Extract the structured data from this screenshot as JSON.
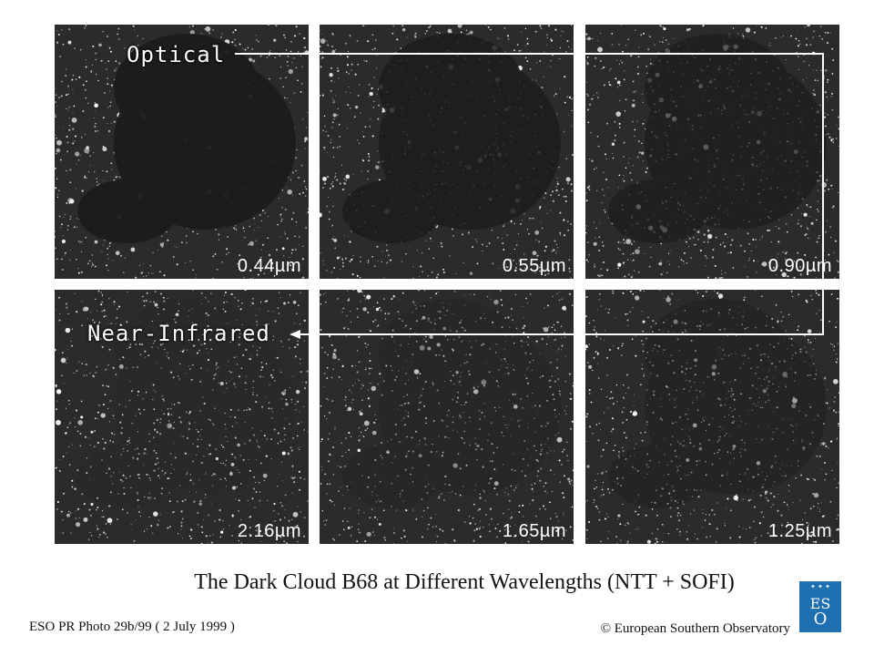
{
  "band_labels": {
    "optical": "Optical",
    "near_infrared": "Near-Infrared"
  },
  "panels": [
    {
      "wavelength": "0.44µm",
      "row": "optical",
      "cloud_opacity": 0.95
    },
    {
      "wavelength": "0.55µm",
      "row": "optical",
      "cloud_opacity": 0.85
    },
    {
      "wavelength": "0.90µm",
      "row": "optical",
      "cloud_opacity": 0.7
    },
    {
      "wavelength": "2.16µm",
      "row": "near-infrared",
      "cloud_opacity": 0.1
    },
    {
      "wavelength": "1.65µm",
      "row": "near-infrared",
      "cloud_opacity": 0.25
    },
    {
      "wavelength": "1.25µm",
      "row": "near-infrared",
      "cloud_opacity": 0.4
    }
  ],
  "caption": {
    "title": "The Dark Cloud B68 at Different Wavelengths   (NTT + SOFI)",
    "photo_id": "ESO PR Photo 29b/99 ( 2 July 1999 )",
    "copyright": "© European Southern Observatory"
  },
  "logo": {
    "line1": "ES",
    "line2": "O",
    "color": "#1f6fb3"
  },
  "colors": {
    "sky": "#2b2b2b",
    "cloud": "#1c1c1c",
    "connector": "#ffffff"
  }
}
